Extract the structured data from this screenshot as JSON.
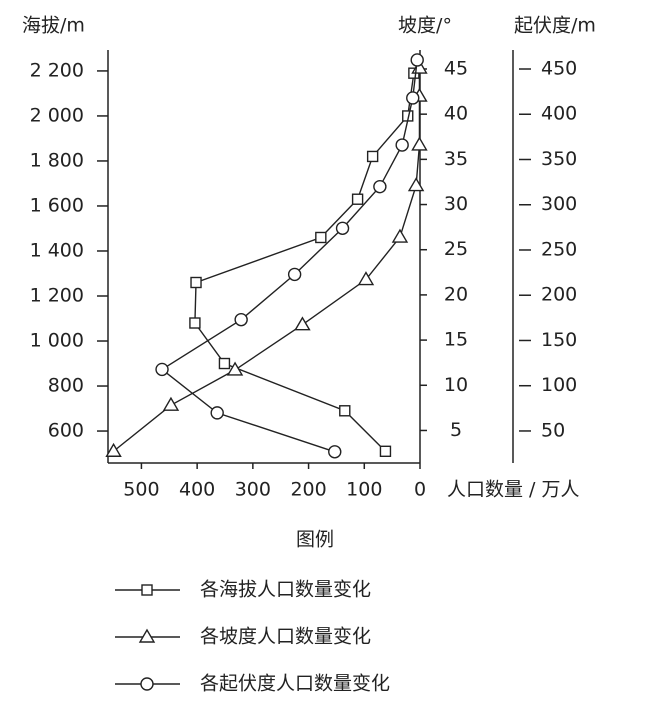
{
  "chart_data": {
    "type": "line",
    "y_label": "海拔/m",
    "y2_label": "坡度/°",
    "y3_label": "起伏度/m",
    "x_label": "人口数量 / 万人",
    "legend_title": "图例",
    "xlim": [
      0,
      560
    ],
    "x_reversed": true,
    "xticks": [
      500,
      400,
      300,
      200,
      100,
      0
    ],
    "ylim": [
      458,
      2293
    ],
    "yticks": [
      600,
      800,
      {
        "value": 1000,
        "label": "1 000"
      },
      {
        "value": 1200,
        "label": "1 200"
      },
      {
        "value": 1400,
        "label": "1 400"
      },
      {
        "value": 1600,
        "label": "1 600"
      },
      {
        "value": 1800,
        "label": "1 800"
      },
      {
        "value": 2000,
        "label": "2 000"
      },
      {
        "value": 2200,
        "label": "2 200"
      }
    ],
    "y2lim": [
      1.4,
      47.1
    ],
    "y2ticks": [
      5,
      10,
      15,
      20,
      25,
      30,
      35,
      40,
      45
    ],
    "y3lim": [
      14.6,
      471
    ],
    "y3ticks": [
      50,
      100,
      150,
      200,
      250,
      300,
      350,
      400,
      450
    ],
    "series": [
      {
        "name": "各海拔人口数量变化",
        "color": "#222222",
        "marker": "square",
        "axis": "y",
        "x": [
          62,
          135,
          351,
          404,
          402,
          178,
          112,
          85,
          22,
          11
        ],
        "values": [
          510,
          690,
          900,
          1080,
          1260,
          1460,
          1630,
          1820,
          2000,
          2190
        ]
      },
      {
        "name": "各坡度人口数量变化",
        "color": "#222222",
        "marker": "triangle",
        "axis": "y2",
        "x": [
          550,
          447,
          332,
          211,
          97,
          36,
          7,
          1,
          1,
          1
        ],
        "values": [
          2.7,
          7.8,
          11.7,
          16.7,
          21.7,
          26.4,
          32.1,
          36.6,
          42.0,
          45.1
        ]
      },
      {
        "name": "各起伏度人口数量变化",
        "color": "#222222",
        "marker": "circle",
        "axis": "y3",
        "x": [
          153,
          364,
          463,
          321,
          225,
          139,
          72,
          32,
          13,
          5
        ],
        "values": [
          27,
          70,
          118,
          173,
          223,
          274,
          320,
          366,
          418,
          460
        ]
      }
    ]
  }
}
